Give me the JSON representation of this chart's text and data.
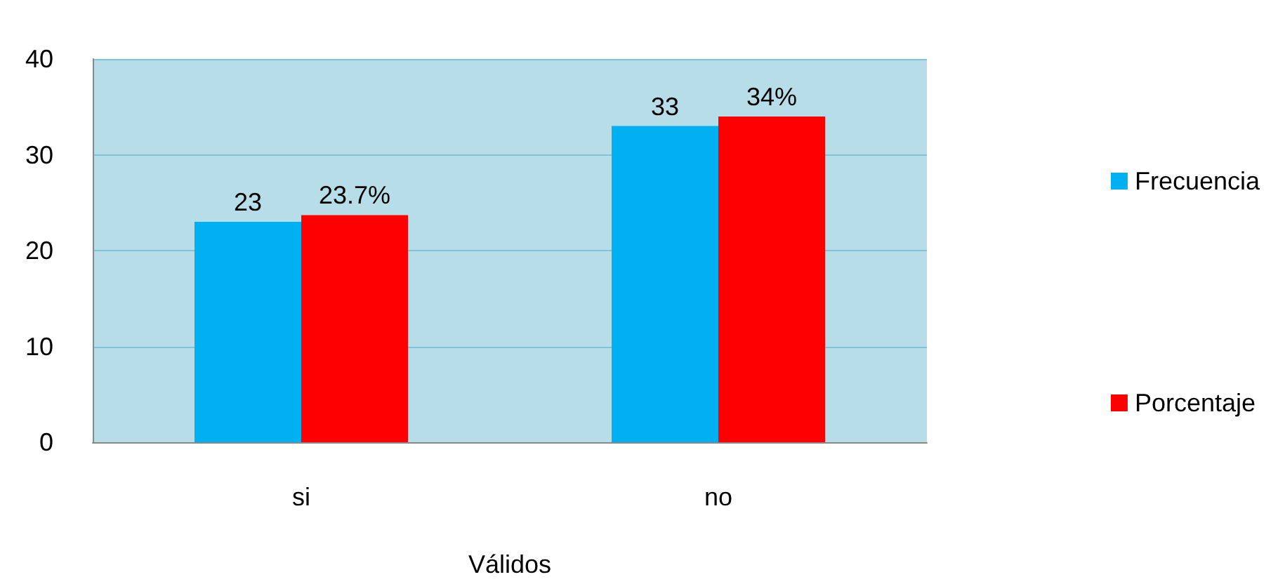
{
  "chart_data": {
    "type": "bar",
    "categories": [
      "si",
      "no"
    ],
    "xlabel": "Válidos",
    "series": [
      {
        "name": "Frecuencia",
        "color": "#00b0f0",
        "values": [
          23,
          33
        ],
        "value_labels": [
          "23",
          "33"
        ]
      },
      {
        "name": "Porcentaje",
        "color": "#ff0000",
        "values": [
          23.7,
          34
        ],
        "value_labels": [
          "23.7%",
          "34%"
        ]
      }
    ],
    "ylim": [
      0,
      40
    ],
    "yticks": [
      0,
      10,
      20,
      30,
      40
    ],
    "grid": "y",
    "legend": "right"
  }
}
